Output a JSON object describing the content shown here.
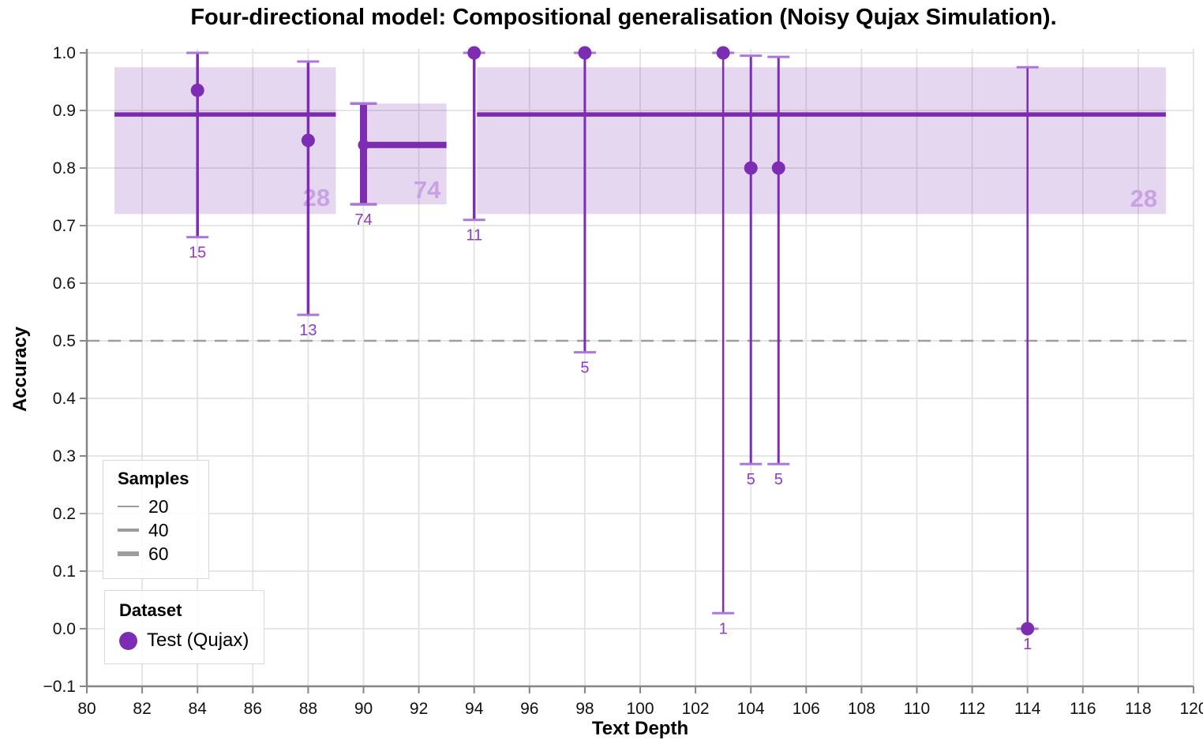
{
  "chart_data": {
    "type": "scatter",
    "title": "Four-directional model: Compositional generalisation (Noisy Qujax Simulation).",
    "xlabel": "Text Depth",
    "ylabel": "Accuracy",
    "xlim": [
      80,
      120
    ],
    "ylim": [
      -0.1,
      1.0
    ],
    "x_ticks": [
      80,
      82,
      84,
      86,
      88,
      90,
      92,
      94,
      96,
      98,
      100,
      102,
      104,
      106,
      108,
      110,
      112,
      114,
      116,
      118,
      120
    ],
    "y_ticks": [
      -0.1,
      0.0,
      0.1,
      0.2,
      0.3,
      0.4,
      0.5,
      0.6,
      0.7,
      0.8,
      0.9,
      1.0
    ],
    "grid": true,
    "legend_position": "lower left",
    "reference_line": {
      "y": 0.5,
      "style": "dashed"
    },
    "points": [
      {
        "x": 84,
        "y": 0.935,
        "ci": [
          0.68,
          1.0
        ],
        "n": 15
      },
      {
        "x": 88,
        "y": 0.848,
        "ci": [
          0.545,
          0.985
        ],
        "n": 13
      },
      {
        "x": 90,
        "y": 0.84,
        "ci": [
          0.737,
          0.912
        ],
        "n": 74
      },
      {
        "x": 94,
        "y": 1.0,
        "ci": [
          0.71,
          1.0
        ],
        "n": 11
      },
      {
        "x": 98,
        "y": 1.0,
        "ci": [
          0.48,
          1.0
        ],
        "n": 5
      },
      {
        "x": 103,
        "y": 1.0,
        "ci": [
          0.027,
          1.0
        ],
        "n": 1
      },
      {
        "x": 104,
        "y": 0.8,
        "ci": [
          0.286,
          0.995
        ],
        "n": 5
      },
      {
        "x": 105,
        "y": 0.8,
        "ci": [
          0.286,
          0.993
        ],
        "n": 5
      },
      {
        "x": 114,
        "y": 0.0,
        "ci": [
          0.0,
          0.975
        ],
        "n": 1
      }
    ],
    "bands": [
      {
        "x_start": 81,
        "x_end": 89,
        "y_low": 0.72,
        "y_high": 0.975,
        "mean": 0.893,
        "n": 28,
        "label_pos": {
          "x": 88.3,
          "y": 0.749
        }
      },
      {
        "x_start": 90,
        "x_end": 93,
        "y_low": 0.737,
        "y_high": 0.912,
        "mean": 0.84,
        "n": 74,
        "label_pos": {
          "x": 92.3,
          "y": 0.763
        }
      },
      {
        "x_start": 94.1,
        "x_end": 119,
        "y_low": 0.72,
        "y_high": 0.975,
        "mean": 0.893,
        "n": 28,
        "label_pos": {
          "x": 118.2,
          "y": 0.748
        }
      }
    ],
    "colors": {
      "main": "#7D2DB3",
      "mean_line": "#7C2BAE",
      "cap": "#AC77DA",
      "band_fill": "rgba(124,43,174,0.19)",
      "band_label": "#C8A2E3",
      "count_label": "#8E3BC8",
      "grid": "#E2E2E2",
      "spine": "#868686",
      "reference": "#9E9E9E"
    }
  },
  "legend_samples": {
    "title": "Samples",
    "sizes": [
      20,
      40,
      60
    ]
  },
  "legend_dataset": {
    "title": "Dataset",
    "items": [
      {
        "label": "Test (Qujax)"
      }
    ]
  }
}
